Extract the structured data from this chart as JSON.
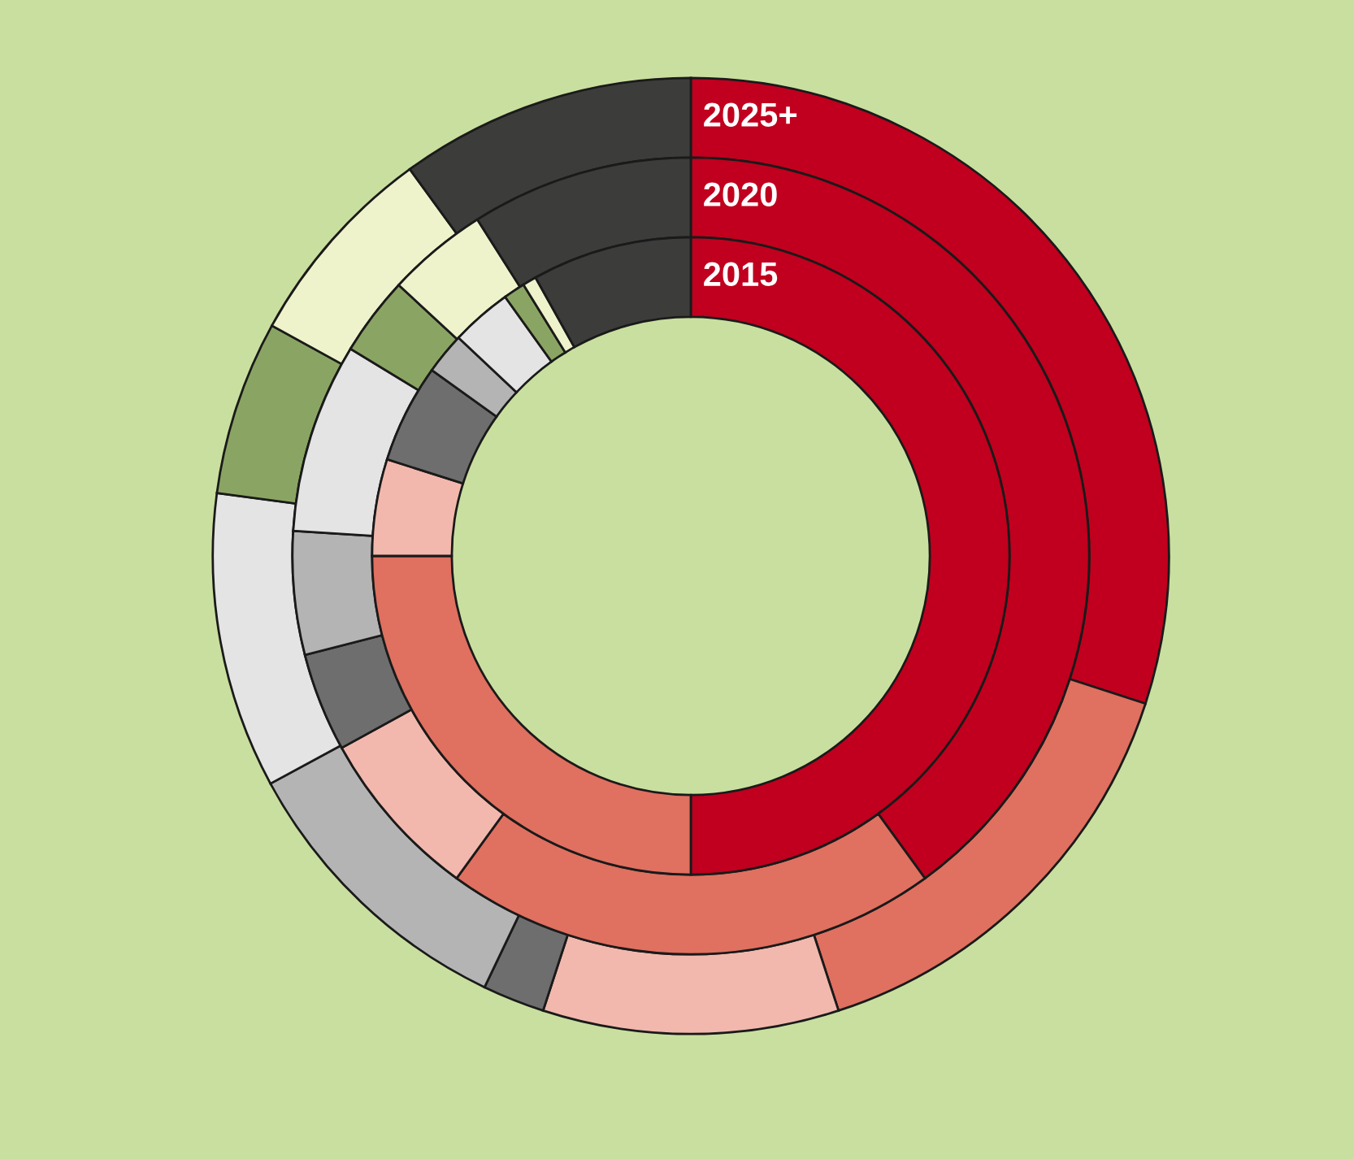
{
  "chart_data": {
    "type": "donut",
    "categories": [
      null,
      null,
      null,
      null,
      null,
      null,
      null,
      null,
      null
    ],
    "series": [
      {
        "name": "2025+",
        "values": [
          30,
          15,
          10,
          2.1,
          10,
          10,
          5.9,
          7,
          10
        ],
        "colors": [
          "#c0001e",
          "#e07060",
          "#f2b8ad",
          "#6e6e6e",
          "#b4b4b4",
          "#e4e4e4",
          "#8aa563",
          "#eef3cc",
          "#3c3c3a"
        ]
      },
      {
        "name": "2020",
        "values": [
          40,
          20,
          7,
          4,
          5,
          7.7,
          3.2,
          4.1,
          9
        ],
        "colors": [
          "#c0001e",
          "#e07060",
          "#f2b8ad",
          "#6e6e6e",
          "#b4b4b4",
          "#e4e4e4",
          "#8aa563",
          "#eef3cc",
          "#3c3c3a"
        ]
      },
      {
        "name": "2015",
        "values": [
          50,
          25,
          4.9,
          5,
          2.1,
          3.1,
          1.1,
          0.7,
          8.1
        ],
        "colors": [
          "#c0001e",
          "#e07060",
          "#f2b8ad",
          "#6e6e6e",
          "#b4b4b4",
          "#e4e4e4",
          "#8aa563",
          "#eef3cc",
          "#3c3c3a"
        ]
      }
    ]
  }
}
